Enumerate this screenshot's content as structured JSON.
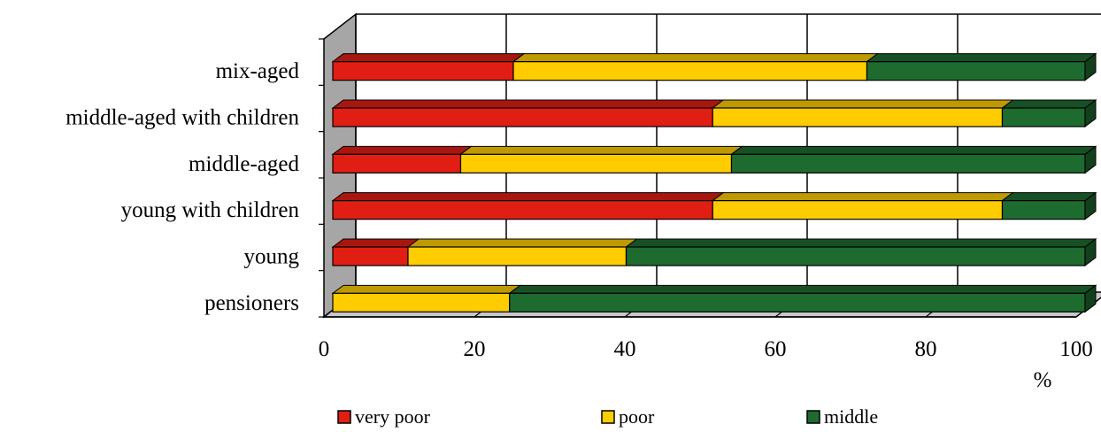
{
  "chart_data": {
    "type": "bar",
    "orientation": "horizontal",
    "stacked": true,
    "three_d": true,
    "categories": [
      "mix-aged",
      "middle-aged with children",
      "middle-aged",
      "young with children",
      "young",
      "pensioners"
    ],
    "series": [
      {
        "name": "very poor",
        "color": "#e01e14",
        "values": [
          24,
          50.5,
          17,
          50.5,
          10,
          0
        ]
      },
      {
        "name": "poor",
        "color": "#ffcc00",
        "values": [
          47,
          38.5,
          36,
          38.5,
          29,
          23.5
        ]
      },
      {
        "name": "middle",
        "color": "#1e6b30",
        "values": [
          29,
          11,
          47,
          11,
          61,
          76.5
        ]
      }
    ],
    "xlim": [
      0,
      100
    ],
    "xticks": [
      0,
      20,
      40,
      60,
      80,
      100
    ],
    "tick_labels": [
      "0",
      "20",
      "40",
      "60",
      "80",
      "100"
    ],
    "unit_label": "%",
    "legend_position": "bottom",
    "gridlines": "vertical"
  }
}
